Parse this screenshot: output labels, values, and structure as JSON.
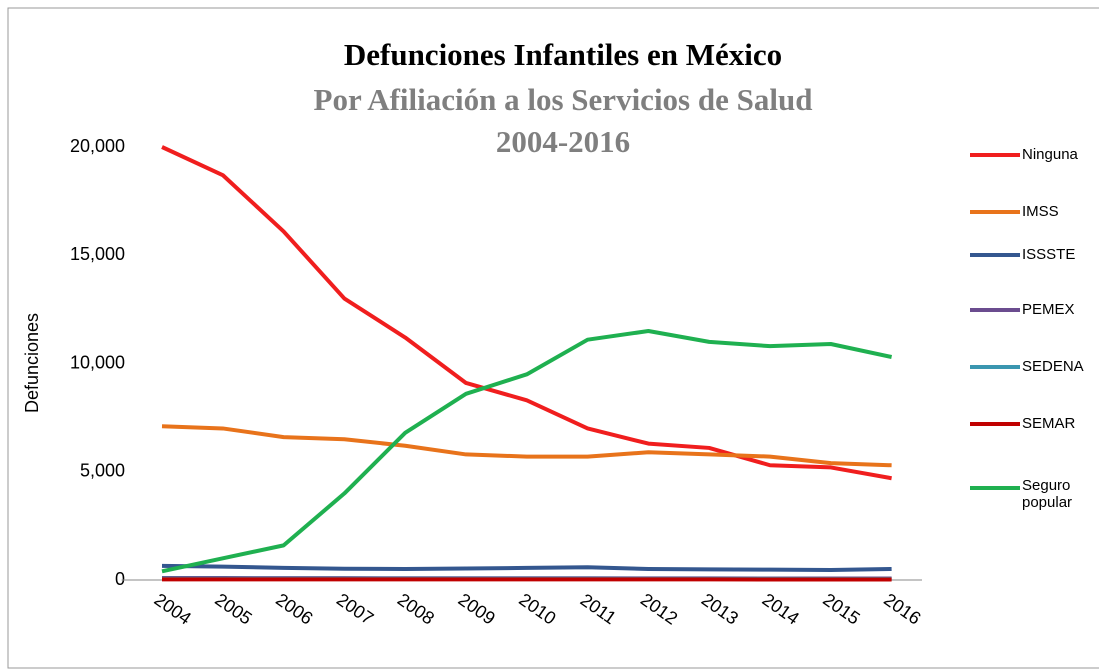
{
  "chart_data": {
    "type": "line",
    "title": "Defunciones Infantiles en México",
    "subtitle": [
      "Por Afiliación a los Servicios de Salud",
      "2004-2016"
    ],
    "y_label": "Defunciones",
    "categories": [
      "2004",
      "2005",
      "2006",
      "2007",
      "2008",
      "2009",
      "2010",
      "2011",
      "2012",
      "2013",
      "2014",
      "2015",
      "2016"
    ],
    "series": [
      {
        "name": "Ninguna",
        "color": "#f01e1e",
        "values": [
          20000,
          18700,
          16100,
          13000,
          11200,
          9100,
          8300,
          7000,
          6300,
          6100,
          5300,
          5200,
          4700
        ]
      },
      {
        "name": "IMSS",
        "color": "#e8731b",
        "values": [
          7100,
          7000,
          6600,
          6500,
          6200,
          5800,
          5700,
          5700,
          5900,
          5800,
          5700,
          5400,
          5300
        ]
      },
      {
        "name": "ISSSTE",
        "color": "#34578f",
        "values": [
          650,
          620,
          560,
          520,
          510,
          530,
          560,
          590,
          510,
          490,
          480,
          460,
          510
        ]
      },
      {
        "name": "PEMEX",
        "color": "#6b4c8f",
        "values": [
          90,
          90,
          85,
          85,
          80,
          80,
          80,
          80,
          75,
          75,
          70,
          70,
          70
        ]
      },
      {
        "name": "SEDENA",
        "color": "#3a96b0",
        "values": [
          60,
          60,
          58,
          58,
          55,
          55,
          55,
          55,
          50,
          50,
          50,
          48,
          48
        ]
      },
      {
        "name": "SEMAR",
        "color": "#c00000",
        "values": [
          30,
          30,
          30,
          28,
          28,
          28,
          27,
          27,
          26,
          26,
          25,
          25,
          25
        ]
      },
      {
        "name": "Seguro popular",
        "color": "#1fb050",
        "values": [
          400,
          1000,
          1600,
          4000,
          6800,
          8600,
          9500,
          11100,
          11500,
          11000,
          10800,
          10900,
          10300
        ]
      }
    ],
    "ylim": [
      0,
      20000
    ],
    "yticks": [
      0,
      {
        "value": 5000,
        "label": "5,000"
      },
      {
        "value": 10000,
        "label": "10,000"
      },
      {
        "value": 15000,
        "label": "15,000"
      },
      {
        "value": 20000,
        "label": "20,000"
      }
    ],
    "grid": false,
    "legend": "right"
  }
}
